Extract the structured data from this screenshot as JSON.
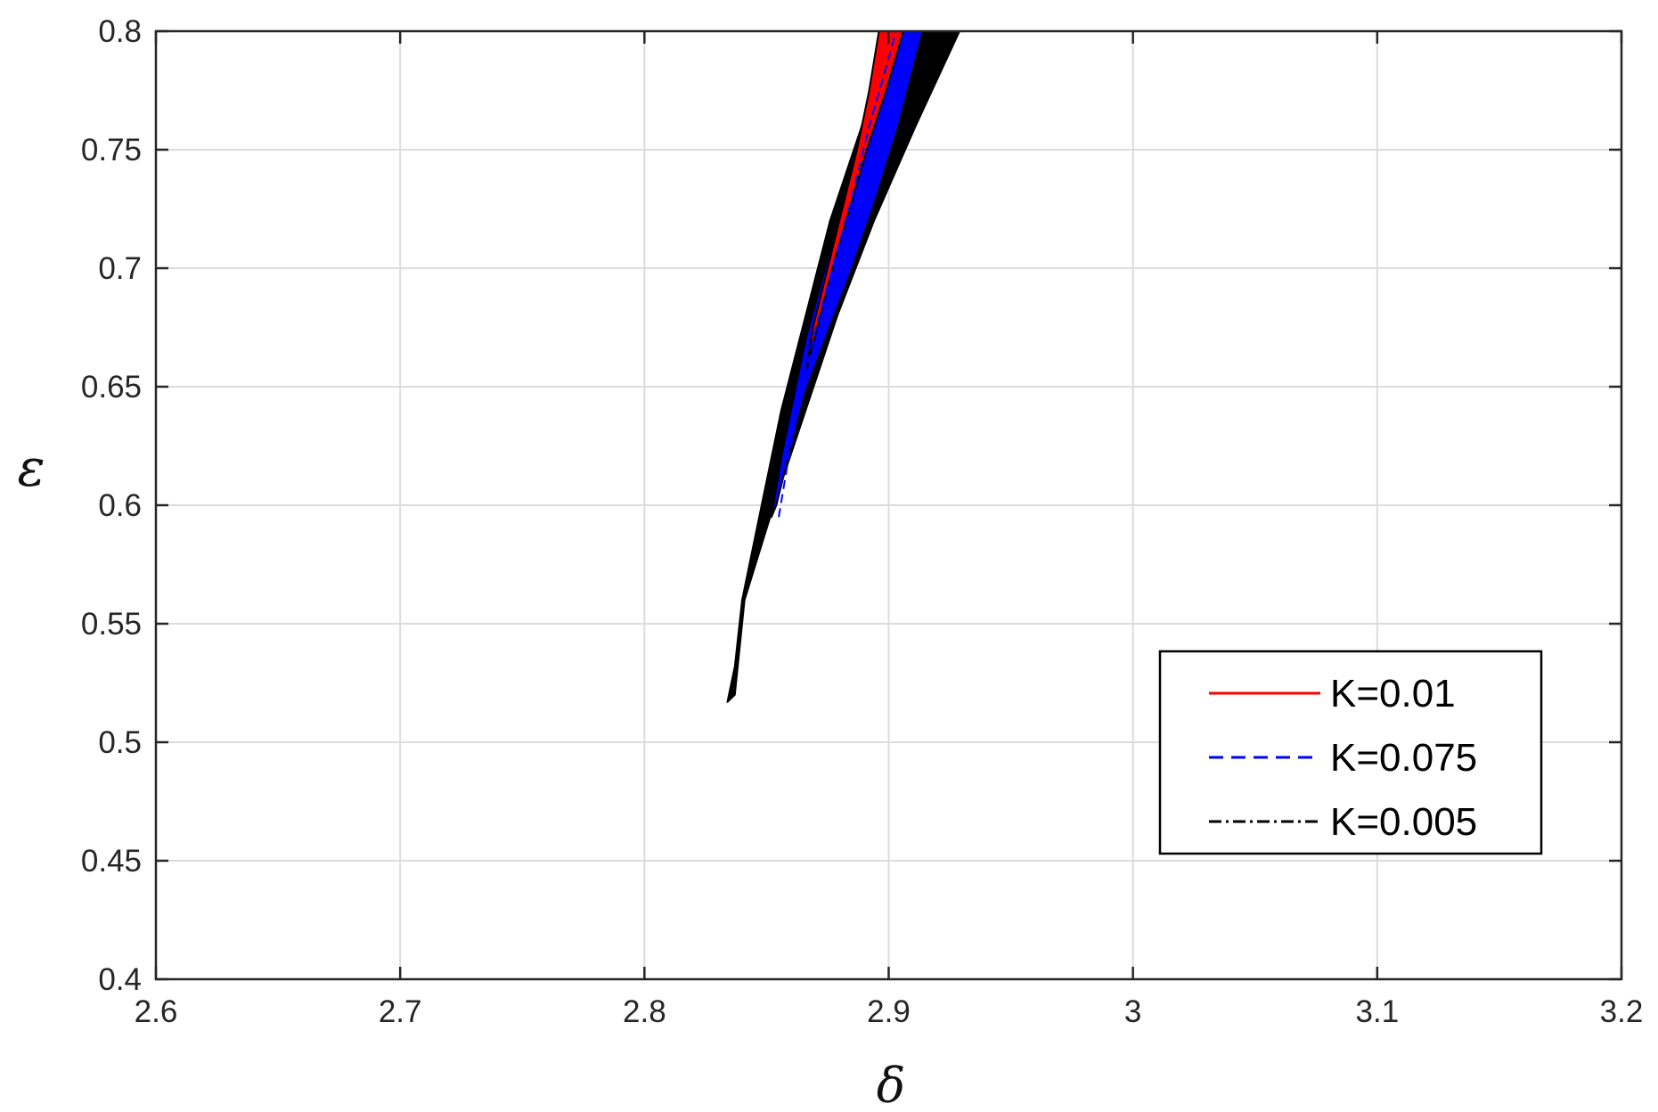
{
  "chart_data": {
    "type": "area",
    "title": "",
    "xlabel": "δ",
    "ylabel": "ε",
    "xlim": [
      2.6,
      3.2
    ],
    "ylim": [
      0.4,
      0.8
    ],
    "xticks": [
      2.6,
      2.7,
      2.8,
      2.9,
      3.0,
      3.1,
      3.2
    ],
    "xtick_labels": [
      "2.6",
      "2.7",
      "2.8",
      "2.9",
      "3",
      "3.1",
      "3.2"
    ],
    "yticks": [
      0.4,
      0.45,
      0.5,
      0.55,
      0.6,
      0.65,
      0.7,
      0.75,
      0.8
    ],
    "ytick_labels": [
      "0.4",
      "0.45",
      "0.5",
      "0.55",
      "0.6",
      "0.65",
      "0.7",
      "0.75",
      "0.8"
    ],
    "grid": true,
    "legend_position": "bottom-right",
    "series": [
      {
        "name": "K=0.005",
        "color": "#000000",
        "line_style": "dash-dot",
        "region": [
          [
            2.834,
            0.517
          ],
          [
            2.837,
            0.532
          ],
          [
            2.84,
            0.56
          ],
          [
            2.848,
            0.6
          ],
          [
            2.856,
            0.64
          ],
          [
            2.866,
            0.68
          ],
          [
            2.876,
            0.72
          ],
          [
            2.889,
            0.76
          ],
          [
            2.902,
            0.8
          ],
          [
            2.929,
            0.8
          ],
          [
            2.911,
            0.76
          ],
          [
            2.894,
            0.72
          ],
          [
            2.879,
            0.68
          ],
          [
            2.866,
            0.64
          ],
          [
            2.853,
            0.6
          ],
          [
            2.841,
            0.56
          ],
          [
            2.837,
            0.52
          ]
        ]
      },
      {
        "name": "K=0.075",
        "color": "#0000ff",
        "line_style": "dashed",
        "region": [
          [
            2.852,
            0.595
          ],
          [
            2.856,
            0.62
          ],
          [
            2.861,
            0.645
          ],
          [
            2.866,
            0.67
          ],
          [
            2.874,
            0.7
          ],
          [
            2.882,
            0.73
          ],
          [
            2.889,
            0.76
          ],
          [
            2.896,
            0.785
          ],
          [
            2.9,
            0.8
          ],
          [
            2.914,
            0.8
          ],
          [
            2.904,
            0.76
          ],
          [
            2.895,
            0.73
          ],
          [
            2.885,
            0.7
          ],
          [
            2.874,
            0.67
          ],
          [
            2.866,
            0.648
          ],
          [
            2.86,
            0.625
          ],
          [
            2.854,
            0.6
          ]
        ]
      },
      {
        "name": "K=0.01",
        "color": "#ff0000",
        "line_style": "solid",
        "region": [
          [
            2.866,
            0.655
          ],
          [
            2.869,
            0.675
          ],
          [
            2.875,
            0.7
          ],
          [
            2.881,
            0.725
          ],
          [
            2.887,
            0.75
          ],
          [
            2.892,
            0.775
          ],
          [
            2.896,
            0.8
          ],
          [
            2.906,
            0.8
          ],
          [
            2.899,
            0.775
          ],
          [
            2.891,
            0.75
          ],
          [
            2.884,
            0.725
          ],
          [
            2.877,
            0.7
          ],
          [
            2.872,
            0.68
          ],
          [
            2.867,
            0.66
          ]
        ]
      }
    ]
  }
}
